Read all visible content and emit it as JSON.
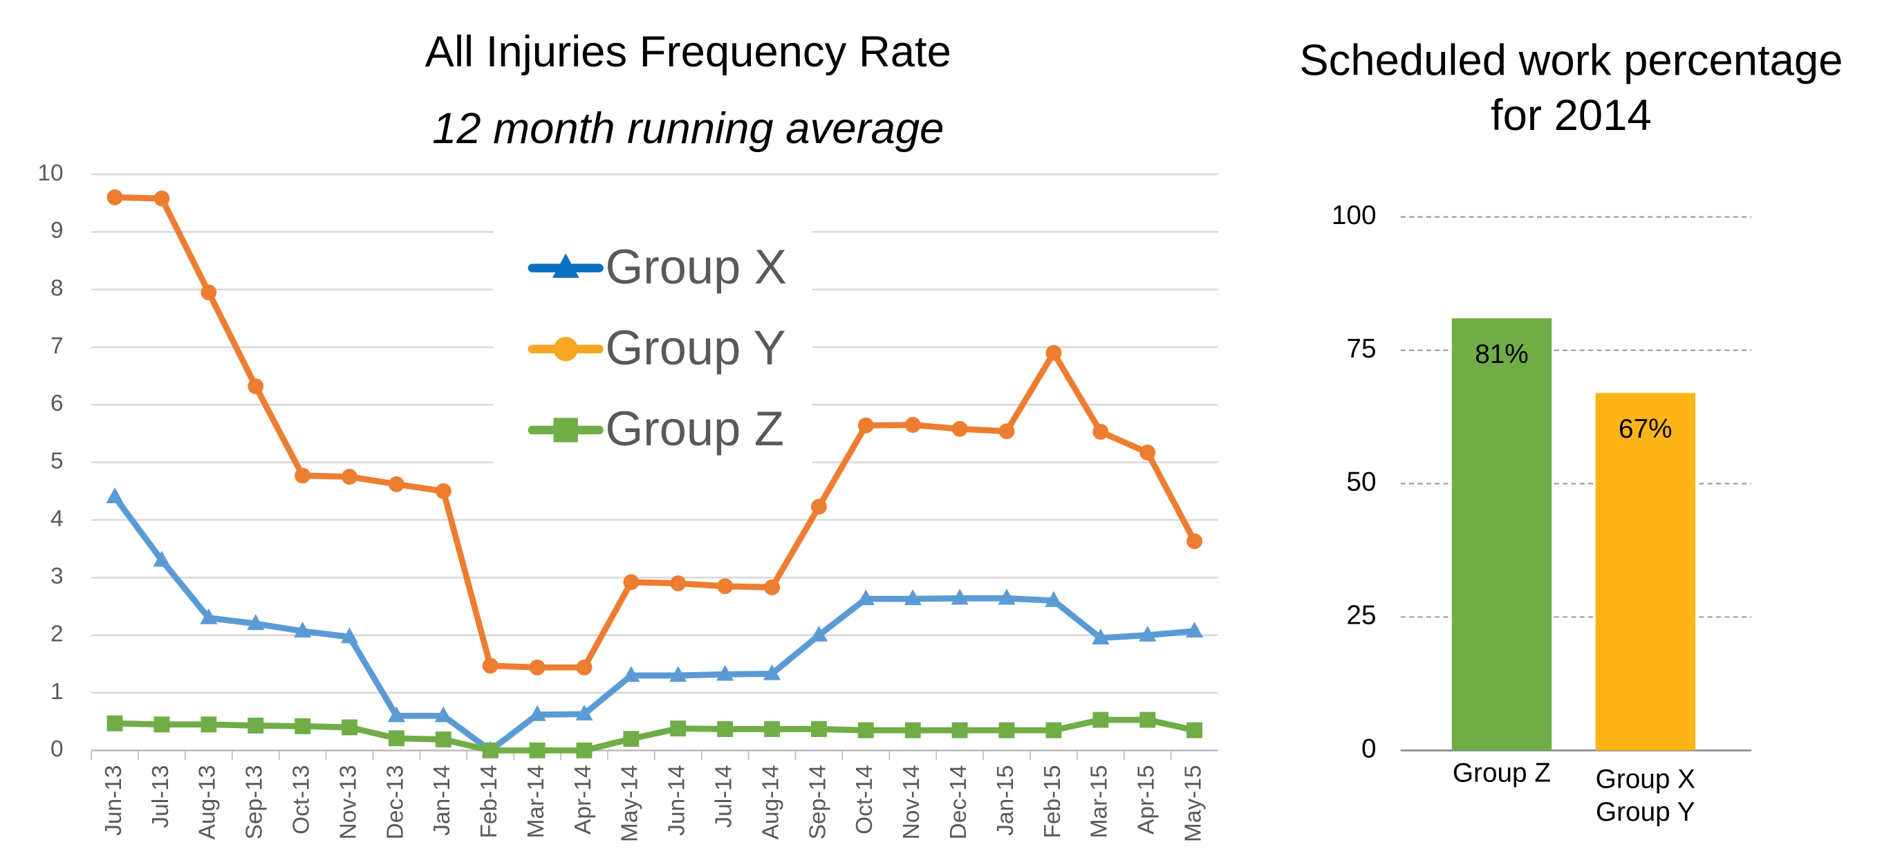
{
  "chart_data": [
    {
      "type": "line",
      "title": "All Injuries Frequency Rate",
      "subtitle": "12 month running average",
      "categories": [
        "Jun-13",
        "Jul-13",
        "Aug-13",
        "Sep-13",
        "Oct-13",
        "Nov-13",
        "Dec-13",
        "Jan-14",
        "Feb-14",
        "Mar-14",
        "Apr-14",
        "May-14",
        "Jun-14",
        "Jul-14",
        "Aug-14",
        "Sep-14",
        "Oct-14",
        "Nov-14",
        "Dec-14",
        "Jan-15",
        "Feb-15",
        "Mar-15",
        "Apr-15",
        "May-15"
      ],
      "series": [
        {
          "name": "Group X",
          "color": "#5b9bd5",
          "legend_color": "#0a6fc2",
          "marker": "triangle",
          "values": [
            4.4,
            3.3,
            2.3,
            2.2,
            2.07,
            1.97,
            0.6,
            0.6,
            0.0,
            0.62,
            0.63,
            1.3,
            1.3,
            1.32,
            1.33,
            2.0,
            2.63,
            2.63,
            2.64,
            2.64,
            2.6,
            1.95,
            2.0,
            2.07
          ]
        },
        {
          "name": "Group Y",
          "color": "#ed7d31",
          "legend_color": "#f7a721",
          "marker": "circle",
          "values": [
            9.6,
            9.58,
            7.95,
            6.32,
            4.77,
            4.75,
            4.62,
            4.5,
            1.47,
            1.44,
            1.44,
            2.92,
            2.9,
            2.85,
            2.83,
            4.23,
            5.64,
            5.65,
            5.58,
            5.54,
            6.9,
            5.53,
            5.17,
            3.63
          ]
        },
        {
          "name": "Group Z",
          "color": "#70ad47",
          "legend_color": "#70ad47",
          "marker": "square",
          "values": [
            0.47,
            0.45,
            0.45,
            0.43,
            0.42,
            0.4,
            0.21,
            0.19,
            0.0,
            0.0,
            0.0,
            0.2,
            0.38,
            0.37,
            0.37,
            0.37,
            0.35,
            0.35,
            0.35,
            0.35,
            0.35,
            0.53,
            0.53,
            0.35
          ]
        }
      ],
      "ylim": [
        0,
        10
      ],
      "yticks": [
        0,
        1,
        2,
        3,
        4,
        5,
        6,
        7,
        8,
        9,
        10
      ],
      "grid": true
    },
    {
      "type": "bar",
      "title": [
        "Scheduled work percentage",
        "for 2014"
      ],
      "categories": [
        "Group Z",
        [
          "Group X",
          "Group Y"
        ]
      ],
      "values": [
        81,
        67
      ],
      "value_labels": [
        "81%",
        "67%"
      ],
      "colors": [
        "#70ad47",
        "#fdb515"
      ],
      "ylim": [
        0,
        100
      ],
      "yticks": [
        0,
        25,
        50,
        75,
        100
      ],
      "grid": true
    }
  ]
}
